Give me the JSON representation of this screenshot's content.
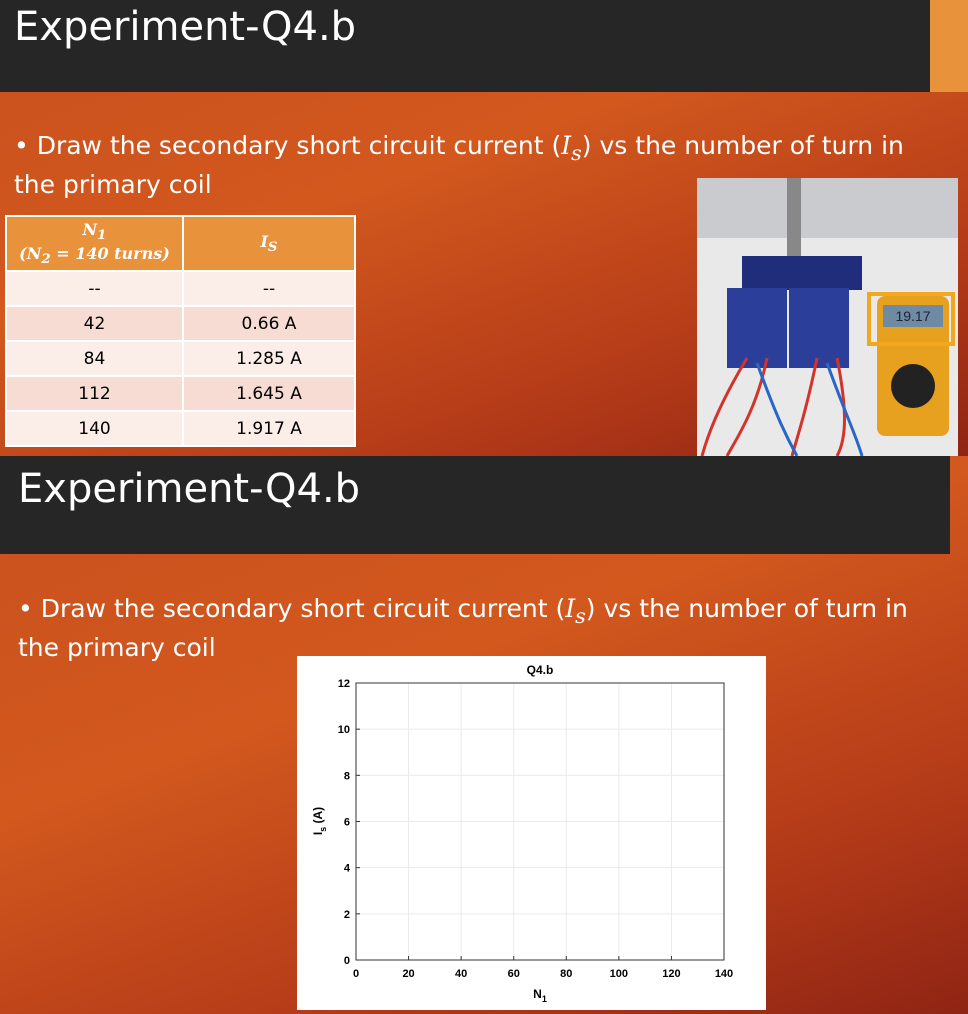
{
  "slide1": {
    "title": "Experiment-Q4.b",
    "bullet": {
      "before": "Draw the secondary short circuit current (",
      "symbol": "I",
      "sub": "s",
      "after": ") vs the number of turn in the primary coil"
    },
    "table": {
      "header": {
        "col1": {
          "symbol": "N",
          "sub": "1",
          "note": "(N",
          "note_sub": "2",
          "note_after": " = 140 turns)"
        },
        "col2": {
          "symbol": "I",
          "sub": "S"
        }
      },
      "rows": [
        [
          "--",
          "--"
        ],
        [
          "42",
          "0.66 A"
        ],
        [
          "84",
          "1.285 A"
        ],
        [
          "112",
          "1.645 A"
        ],
        [
          "140",
          "1.917 A"
        ]
      ]
    },
    "photo_display": "19.17"
  },
  "slide2": {
    "title": "Experiment-Q4.b",
    "bullet": {
      "before": "Draw the secondary short circuit current (",
      "symbol": "I",
      "sub": "s",
      "after": ") vs the number of turn in the primary coil"
    },
    "chart": {
      "type": "line",
      "title": "Q4.b",
      "x_label": "N",
      "x_label_sub": "1",
      "y_label": "I",
      "y_label_sub": "s",
      "y_label_after": " (A)",
      "xlim": [
        0,
        140
      ],
      "xticks": [
        0,
        20,
        40,
        60,
        80,
        100,
        120,
        140
      ],
      "ylim": [
        0,
        12
      ],
      "yticks": [
        0,
        2,
        4,
        6,
        8,
        10,
        12
      ],
      "grid": true
    }
  }
}
